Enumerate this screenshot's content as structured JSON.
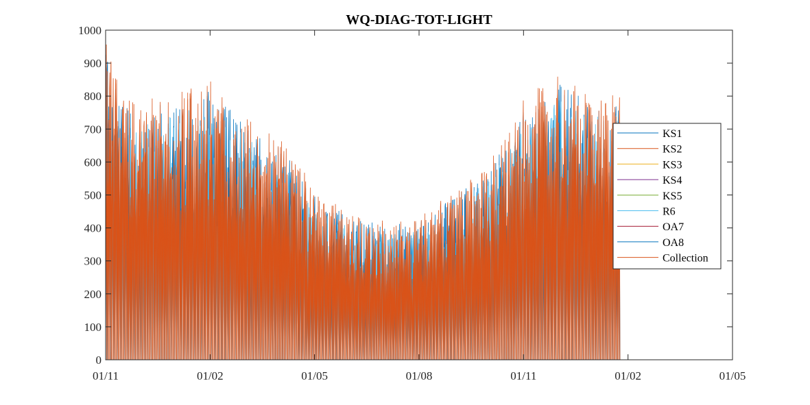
{
  "chart_data": {
    "type": "line",
    "title": "WQ-DIAG-TOT-LIGHT",
    "xlabel": "",
    "ylabel": "",
    "ylim": [
      0,
      1000
    ],
    "yticks": [
      "0",
      "100",
      "200",
      "300",
      "400",
      "500",
      "600",
      "700",
      "800",
      "900",
      "1000"
    ],
    "xlim": [
      "01/11",
      "01/05"
    ],
    "xticks": [
      "01/11",
      "01/02",
      "01/05",
      "01/08",
      "01/11",
      "01/02",
      "01/05"
    ],
    "data_x_range": [
      "01/11",
      "24/01"
    ],
    "grid": false,
    "legend_position": "right",
    "legend": [
      "KS1",
      "KS2",
      "KS3",
      "KS4",
      "KS5",
      "R6",
      "OA7",
      "OA8",
      "Collection"
    ],
    "series": [
      {
        "name": "KS1",
        "color": "#0072bd"
      },
      {
        "name": "KS2",
        "color": "#d95319"
      },
      {
        "name": "KS3",
        "color": "#edb120"
      },
      {
        "name": "KS4",
        "color": "#7e2f8e"
      },
      {
        "name": "KS5",
        "color": "#77ac30"
      },
      {
        "name": "R6",
        "color": "#4dbeee"
      },
      {
        "name": "OA7",
        "color": "#a2142f"
      },
      {
        "name": "OA8",
        "color": "#0072bd"
      },
      {
        "name": "Collection",
        "color": "#d95319"
      }
    ],
    "daily_peak_envelope": {
      "x": [
        "01/11",
        "15/11",
        "01/12",
        "01/01",
        "01/02",
        "01/03",
        "01/04",
        "01/05",
        "01/06",
        "01/07",
        "01/08",
        "01/09",
        "01/10",
        "01/11",
        "01/12",
        "01/01",
        "24/01"
      ],
      "y": [
        930,
        780,
        760,
        790,
        830,
        720,
        650,
        510,
        430,
        410,
        420,
        500,
        580,
        770,
        850,
        780,
        800
      ]
    }
  }
}
